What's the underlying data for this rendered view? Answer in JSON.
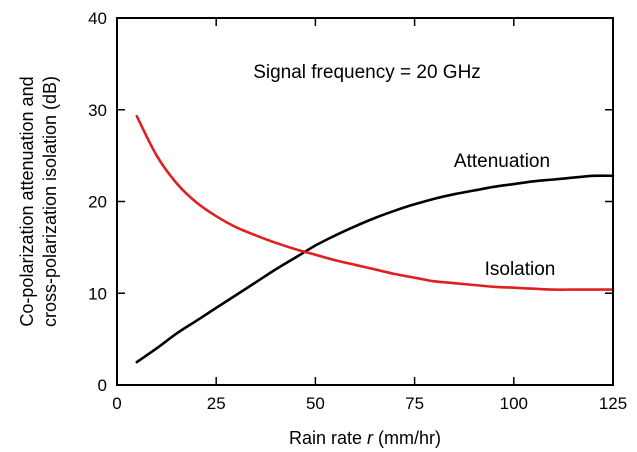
{
  "chart_data": {
    "type": "line",
    "title": "",
    "annotation": "Signal frequency = 20 GHz",
    "xlabel": "Rain rate",
    "xlabel_var": "r",
    "xlabel_unit": "(mm/hr)",
    "ylabel_line1": "Co-polarization attenuation and",
    "ylabel_line2": "cross-polarization isolation (dB)",
    "xlim": [
      0,
      125
    ],
    "ylim": [
      0,
      40
    ],
    "xticks": [
      0,
      25,
      50,
      75,
      100,
      125
    ],
    "yticks": [
      0,
      10,
      20,
      30,
      40
    ],
    "grid": false,
    "series": [
      {
        "name": "Attenuation",
        "color": "#000000",
        "x": [
          5,
          10,
          15,
          20,
          25,
          30,
          35,
          40,
          45,
          50,
          55,
          60,
          65,
          70,
          75,
          80,
          85,
          90,
          95,
          100,
          105,
          110,
          115,
          120,
          125
        ],
        "y": [
          2.5,
          4.0,
          5.6,
          7.0,
          8.4,
          9.8,
          11.2,
          12.6,
          13.9,
          15.2,
          16.3,
          17.3,
          18.2,
          19.0,
          19.7,
          20.3,
          20.8,
          21.2,
          21.6,
          21.9,
          22.2,
          22.4,
          22.6,
          22.8,
          22.8
        ]
      },
      {
        "name": "Isolation",
        "color": "#e02020",
        "x": [
          5,
          10,
          15,
          20,
          25,
          30,
          35,
          40,
          45,
          50,
          55,
          60,
          65,
          70,
          75,
          80,
          85,
          90,
          95,
          100,
          105,
          110,
          115,
          120,
          125
        ],
        "y": [
          29.3,
          25.0,
          22.0,
          19.9,
          18.4,
          17.2,
          16.3,
          15.5,
          14.8,
          14.2,
          13.6,
          13.1,
          12.6,
          12.1,
          11.7,
          11.3,
          11.1,
          10.9,
          10.7,
          10.6,
          10.5,
          10.4,
          10.4,
          10.4,
          10.4
        ]
      }
    ]
  }
}
